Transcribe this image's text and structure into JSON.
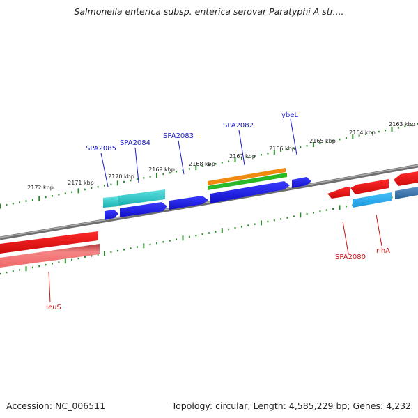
{
  "header": {
    "title": "Salmonella enterica subsp. enterica serovar Paratyphi A str...."
  },
  "footer": {
    "accession": "Accession: NC_006511",
    "topology": "Topology: circular; Length: 4,585,229 bp; Genes: 4,232"
  },
  "colors": {
    "backbone": "#8a8a8a",
    "ruler": "#2a8a2a",
    "forward_label": "#1a1acc",
    "reverse_label": "#cc1111",
    "blue_gene": "#1a1add",
    "red_gene": "#ee1111",
    "cyan_gene": "#22c6c6",
    "skyblue_gene": "#2aaaee",
    "steelblue_gene": "#3a78b0",
    "orange_gene": "#f08a10",
    "green_gene": "#28b828",
    "pink_gene": "#f07878"
  },
  "ruler_labels": [
    "2172 kbp",
    "2171 kbp",
    "2170 kbp",
    "2169 kbp",
    "2168 kbp",
    "2167 kbp",
    "2166 kbp",
    "2165 kbp",
    "2164 kbp",
    "2163 kbp"
  ],
  "forward_gene_labels": [
    "SPA2085",
    "SPA2084",
    "SPA2083",
    "SPA2082",
    "ybeL"
  ],
  "reverse_gene_labels": [
    "SPA2080",
    "rihA",
    "leuS"
  ]
}
